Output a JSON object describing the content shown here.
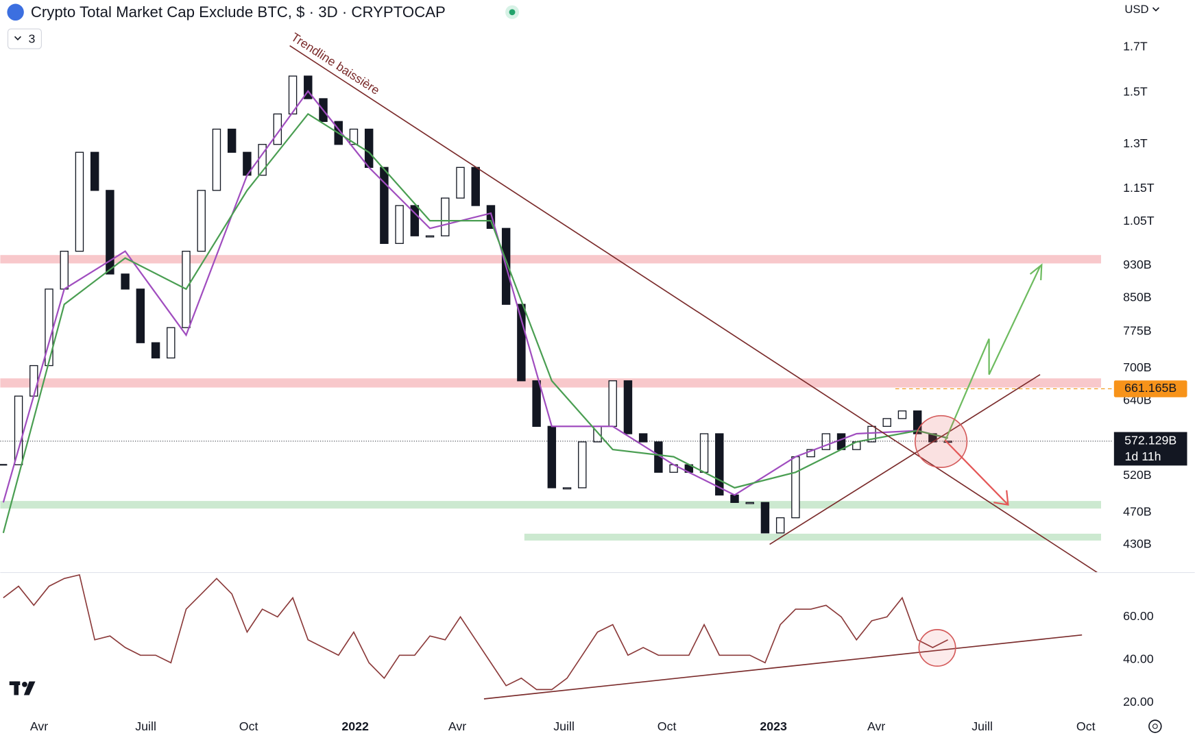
{
  "header": {
    "title": "Crypto Total Market Cap Exclude BTC, $ · 3D · CRYPTOCAP",
    "indicator_count": 3,
    "currency": "USD"
  },
  "chart_data": [
    {
      "type": "candlestick",
      "log_scale": true,
      "color_up": "#ffffff",
      "color_down": "#131722",
      "close": [
        536,
        648,
        705,
        871,
        967,
        1271,
        1144,
        908,
        871,
        751,
        720,
        783,
        967,
        1144,
        1355,
        1271,
        1193,
        1299,
        1413,
        1569,
        1474,
        1384,
        1299,
        1355,
        1219,
        988,
        1097,
        1009,
        1009,
        1120,
        1219,
        1097,
        1030,
        835,
        676,
        596,
        503,
        503,
        571,
        596,
        676,
        584,
        571,
        525,
        536,
        525,
        584,
        493,
        483,
        483,
        444,
        463,
        548,
        559,
        584,
        559,
        571,
        596,
        609,
        622,
        584,
        571,
        572.129
      ],
      "lines": [
        {
          "color": "#a04dbf",
          "x": [
            0,
            4,
            8,
            12,
            16,
            20,
            24,
            28,
            32,
            36,
            40,
            44,
            48,
            52,
            56,
            60,
            62
          ],
          "values": [
            483,
            871,
            967,
            767,
            1193,
            1505,
            1219,
            1030,
            1074,
            596,
            596,
            536,
            493,
            548,
            584,
            589,
            577
          ]
        },
        {
          "color": "#4a9e52",
          "x": [
            0,
            4,
            8,
            12,
            16,
            20,
            24,
            28,
            32,
            36,
            40,
            44,
            48,
            52,
            56,
            60,
            62
          ],
          "values": [
            444,
            835,
            949,
            871,
            1144,
            1413,
            1271,
            1052,
            1052,
            676,
            559,
            548,
            503,
            525,
            571,
            589,
            577
          ]
        }
      ],
      "ylim": [
        398,
        1936
      ],
      "yticks": [
        {
          "value": 1700,
          "label": "1.7T"
        },
        {
          "value": 1500,
          "label": "1.5T"
        },
        {
          "value": 1300,
          "label": "1.3T"
        },
        {
          "value": 1150,
          "label": "1.15T"
        },
        {
          "value": 1050,
          "label": "1.05T"
        },
        {
          "value": 930,
          "label": "930B"
        },
        {
          "value": 850,
          "label": "850B"
        },
        {
          "value": 775,
          "label": "775B"
        },
        {
          "value": 700,
          "label": "700B"
        },
        {
          "value": 640,
          "label": "640B"
        },
        {
          "value": 520,
          "label": "520B"
        },
        {
          "value": 470,
          "label": "470B"
        },
        {
          "value": 430,
          "label": "430B"
        }
      ],
      "xlim": [
        -0.2,
        72.05
      ],
      "xticks": [
        {
          "value": 2.35,
          "label": "Avr"
        },
        {
          "value": 9.35,
          "label": "Juill"
        },
        {
          "value": 16.1,
          "label": "Oct"
        },
        {
          "value": 23.1,
          "label": "2022",
          "major": true
        },
        {
          "value": 29.8,
          "label": "Avr"
        },
        {
          "value": 36.8,
          "label": "Juill"
        },
        {
          "value": 43.55,
          "label": "Oct"
        },
        {
          "value": 50.55,
          "label": "2023",
          "major": true
        },
        {
          "value": 57.3,
          "label": "Avr"
        },
        {
          "value": 64.25,
          "label": "Juill"
        },
        {
          "value": 71.05,
          "label": "Oct"
        }
      ],
      "annotation": "Trendline baissière",
      "price_line": 661.165,
      "price_line_label": "661.165B",
      "last_price": 572.129,
      "last_price_label": "572.129B",
      "countdown": "1d 11h"
    },
    {
      "type": "line",
      "color": "#8b3a3a",
      "values": [
        68.9,
        74.3,
        65.4,
        74.3,
        77.9,
        79.6,
        49.3,
        51.1,
        45.7,
        42.1,
        42.1,
        38.6,
        63.6,
        70.7,
        77.9,
        70.7,
        52.9,
        63.6,
        60,
        68.9,
        49.3,
        45.7,
        42.1,
        52.9,
        38.6,
        31.4,
        42.1,
        42.1,
        51.1,
        49.3,
        60,
        49.3,
        38.6,
        27.9,
        31.4,
        26.1,
        26.1,
        31.4,
        42.1,
        52.9,
        56.4,
        42.1,
        45.7,
        42.1,
        42.1,
        42.1,
        56.4,
        42.1,
        42.1,
        42.1,
        38.6,
        56.4,
        63.6,
        63.6,
        65.4,
        60,
        49.3,
        58.2,
        60,
        68.9,
        49.3,
        45.7,
        49.3
      ],
      "ylim": [
        15.7,
        80.7
      ],
      "yticks": [
        {
          "value": 60,
          "label": "60.00"
        },
        {
          "value": 40,
          "label": "40.00"
        },
        {
          "value": 20,
          "label": "20.00"
        }
      ]
    }
  ]
}
